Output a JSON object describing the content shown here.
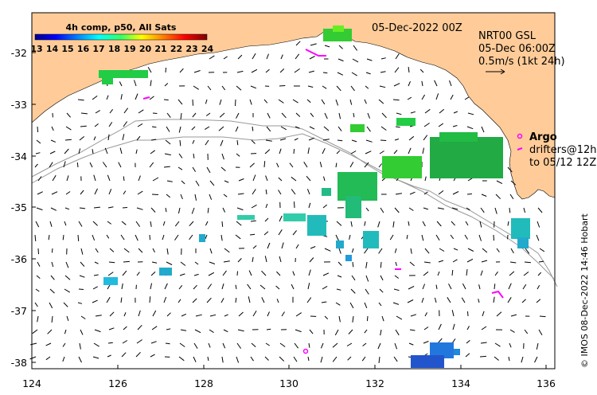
{
  "map": {
    "composite_label": "4h comp, p50, All Sats",
    "date_label": "05-Dec-2022 00Z",
    "product": "NRT00 GSL",
    "current_time": "05-Dec 06:00Z",
    "scale_label": "0.5m/s (1kt 24h)",
    "argo_label": "Argo",
    "drifters_label": "drifters@12h",
    "drifters_to": "to 05/12 12Z",
    "credit": "© IMOS 08-Dec-2022 14:46 Hobart",
    "colorbar_ticks": [
      "13",
      "14",
      "15",
      "16",
      "17",
      "18",
      "19",
      "20",
      "21",
      "22",
      "23",
      "24"
    ],
    "lon_ticks": [
      "124",
      "126",
      "128",
      "130",
      "132",
      "134",
      "136"
    ],
    "lat_ticks": [
      "-32",
      "-33",
      "-34",
      "-35",
      "-36",
      "-37",
      "-38"
    ],
    "colors": {
      "land": "#ffcc99",
      "argo": "#ff00ff",
      "contour": "#999999"
    }
  }
}
